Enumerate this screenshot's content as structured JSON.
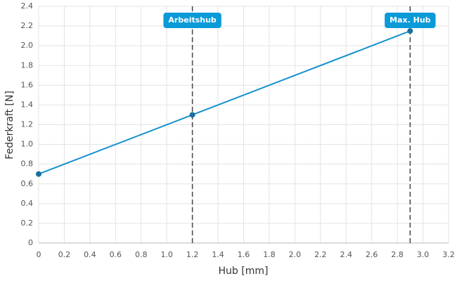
{
  "chart_data": {
    "type": "line",
    "xlabel": "Hub [mm]",
    "ylabel": "Federkraft [N]",
    "x": [
      0,
      1.2,
      2.9
    ],
    "series": [
      {
        "name": "Federkraft",
        "color": "#1592cf",
        "values": [
          0.7,
          1.3,
          2.15
        ]
      }
    ],
    "xlim": [
      0,
      3.2
    ],
    "xticks": [
      0,
      0.2,
      0.4,
      0.6,
      0.8,
      {
        "value": 1,
        "label": "1.0"
      },
      1.2,
      1.4,
      1.6,
      1.8,
      {
        "value": 2,
        "label": "2.0"
      },
      2.2,
      2.4,
      2.6,
      2.8,
      {
        "value": 3,
        "label": "3.0"
      },
      3.2
    ],
    "ylim": [
      0,
      2.4
    ],
    "yticks": [
      0,
      0.2,
      0.4,
      0.6,
      0.8,
      {
        "value": 1,
        "label": "1.0"
      },
      1.2,
      1.4,
      1.6,
      1.8,
      {
        "value": 2,
        "label": "2.0"
      },
      2.2,
      2.4
    ],
    "grid": true,
    "annotations": [
      {
        "x": 1.2,
        "label": "Arbeitshub"
      },
      {
        "x": 2.9,
        "label": "Max. Hub"
      }
    ],
    "annotation_color": "#0a9ad8"
  }
}
